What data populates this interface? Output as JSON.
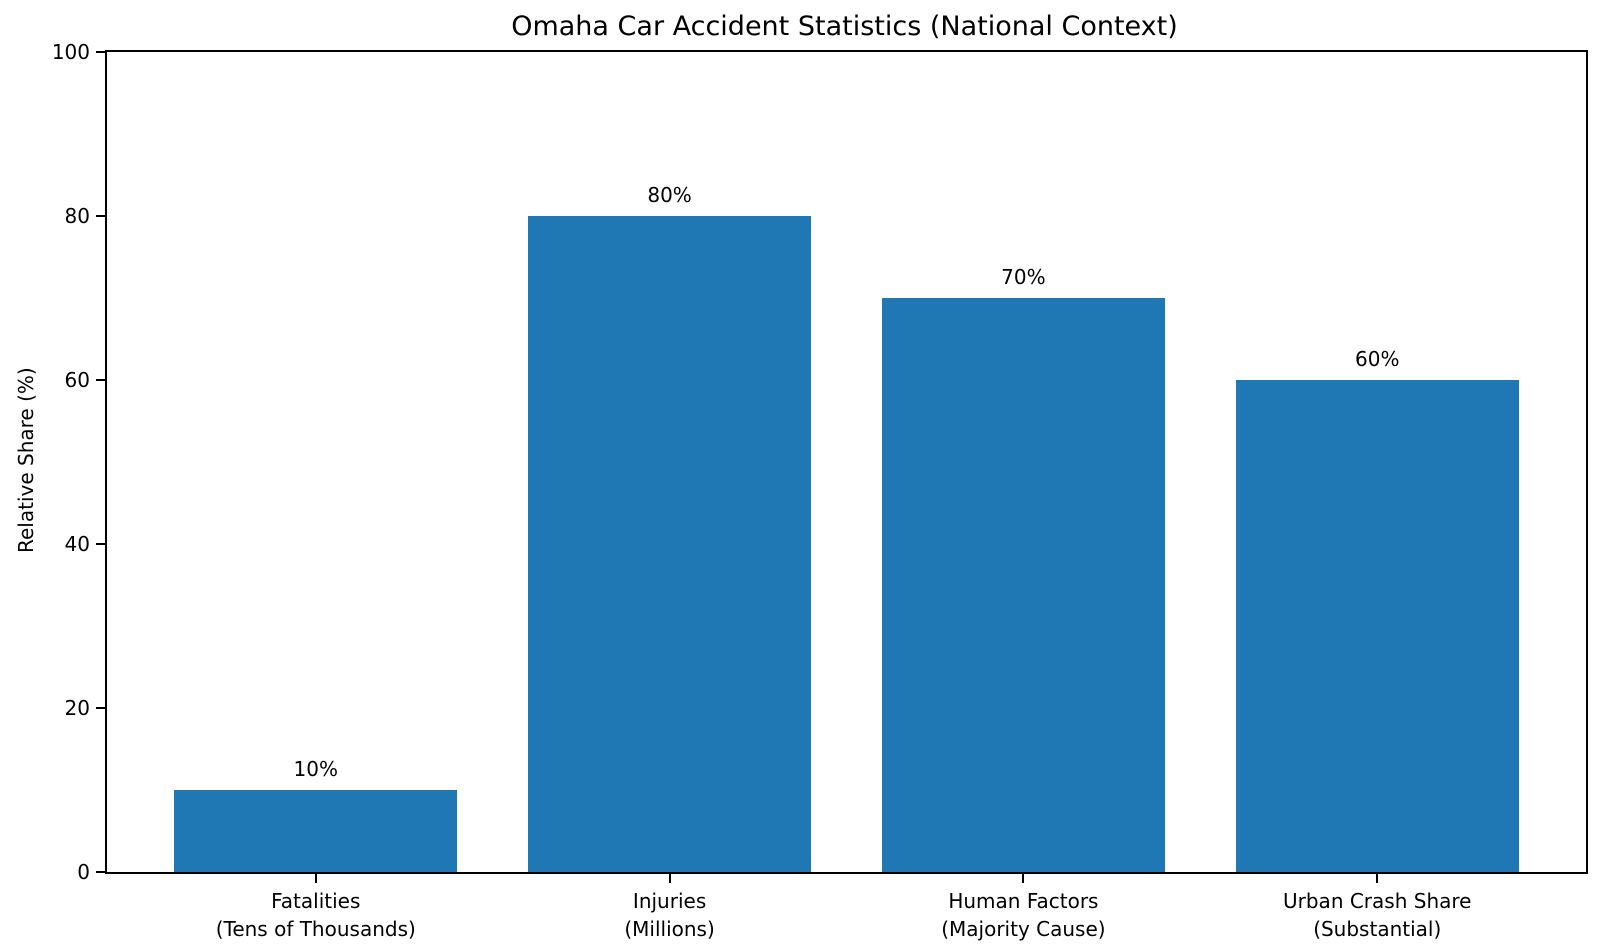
{
  "figure": {
    "background": "#ffffff"
  },
  "chart_data": {
    "type": "bar",
    "title": "Omaha Car Accident Statistics (National Context)",
    "xlabel": "",
    "ylabel": "Relative Share (%)",
    "categories": [
      "Fatalities\n(Tens of Thousands)",
      "Injuries\n(Millions)",
      "Human Factors\n(Majority Cause)",
      "Urban Crash Share\n(Substantial)"
    ],
    "values": [
      10,
      80,
      70,
      60
    ],
    "bar_labels": [
      "10%",
      "80%",
      "70%",
      "60%"
    ],
    "ylim": [
      0,
      100
    ],
    "yticks": [
      "0",
      "20",
      "40",
      "60",
      "80",
      "100"
    ],
    "ytick_values": [
      0,
      20,
      40,
      60,
      80,
      100
    ],
    "grid": false,
    "legend_position": "none",
    "colors": {
      "bar": "#1f77b4",
      "spine": "#000000",
      "text": "#000000",
      "background": "#ffffff"
    }
  }
}
